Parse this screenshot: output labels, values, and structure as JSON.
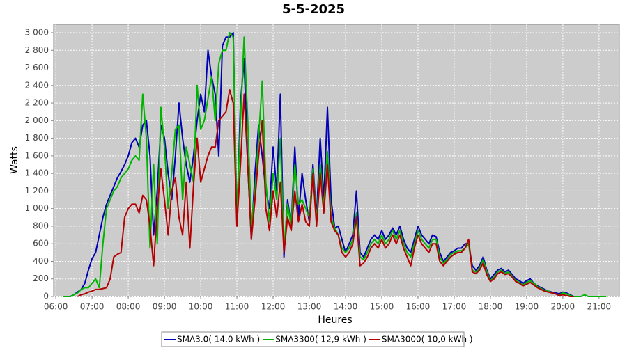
{
  "chart_data": {
    "type": "line",
    "title": "5-5-2025",
    "x_label": "Heures",
    "y_label": "Watts",
    "x": [
      6.2,
      6.3,
      6.4,
      6.5,
      6.6,
      6.7,
      6.8,
      6.9,
      7.0,
      7.1,
      7.2,
      7.3,
      7.4,
      7.5,
      7.6,
      7.7,
      7.8,
      7.9,
      8.0,
      8.1,
      8.2,
      8.3,
      8.4,
      8.5,
      8.6,
      8.7,
      8.8,
      8.9,
      9.0,
      9.1,
      9.2,
      9.3,
      9.4,
      9.5,
      9.6,
      9.7,
      9.8,
      9.9,
      10.0,
      10.1,
      10.2,
      10.3,
      10.4,
      10.5,
      10.6,
      10.7,
      10.8,
      10.9,
      11.0,
      11.1,
      11.2,
      11.3,
      11.4,
      11.5,
      11.6,
      11.7,
      11.8,
      11.9,
      12.0,
      12.1,
      12.2,
      12.3,
      12.4,
      12.5,
      12.6,
      12.7,
      12.8,
      12.9,
      13.0,
      13.1,
      13.2,
      13.3,
      13.4,
      13.5,
      13.6,
      13.7,
      13.8,
      13.9,
      14.0,
      14.1,
      14.2,
      14.3,
      14.4,
      14.5,
      14.6,
      14.7,
      14.8,
      14.9,
      15.0,
      15.1,
      15.2,
      15.3,
      15.4,
      15.5,
      15.6,
      15.7,
      15.8,
      15.9,
      16.0,
      16.1,
      16.2,
      16.3,
      16.4,
      16.5,
      16.6,
      16.7,
      16.8,
      16.9,
      17.0,
      17.1,
      17.2,
      17.3,
      17.4,
      17.5,
      17.6,
      17.7,
      17.8,
      17.9,
      18.0,
      18.1,
      18.2,
      18.3,
      18.4,
      18.5,
      18.6,
      18.7,
      18.8,
      18.9,
      19.0,
      19.1,
      19.2,
      19.3,
      19.4,
      19.5,
      19.6,
      19.7,
      19.8,
      19.9,
      20.0,
      20.1,
      20.2,
      20.3,
      20.4,
      20.5,
      20.6,
      20.7,
      20.8,
      20.9,
      21.0,
      21.1,
      21.2
    ],
    "series": [
      {
        "name": "SMA3.0( 14,0 kWh )",
        "color": "#0000b4",
        "values": [
          null,
          null,
          0,
          20,
          50,
          80,
          150,
          300,
          430,
          500,
          700,
          900,
          1050,
          1150,
          1250,
          1350,
          1420,
          1500,
          1600,
          1750,
          1800,
          1700,
          1950,
          2000,
          1600,
          700,
          1200,
          1950,
          1800,
          1400,
          1100,
          1600,
          2200,
          1800,
          1500,
          1300,
          1600,
          2000,
          2300,
          2100,
          2800,
          2500,
          2300,
          1600,
          2850,
          2950,
          2950,
          3000,
          850,
          2200,
          2700,
          1500,
          650,
          1400,
          1950,
          1600,
          1200,
          1000,
          1700,
          1200,
          2300,
          450,
          1100,
          800,
          1700,
          900,
          1400,
          1100,
          850,
          1500,
          900,
          1800,
          1100,
          2150,
          1100,
          780,
          800,
          650,
          500,
          600,
          700,
          1200,
          500,
          450,
          550,
          650,
          700,
          650,
          750,
          650,
          700,
          780,
          700,
          800,
          650,
          550,
          500,
          650,
          800,
          700,
          650,
          600,
          700,
          680,
          500,
          400,
          450,
          500,
          520,
          550,
          550,
          600,
          600,
          350,
          300,
          350,
          450,
          300,
          200,
          250,
          300,
          320,
          280,
          300,
          250,
          200,
          180,
          150,
          180,
          200,
          150,
          120,
          100,
          80,
          60,
          50,
          40,
          30,
          50,
          40,
          20,
          0,
          0,
          null,
          null,
          null,
          null,
          null,
          null,
          null,
          null
        ]
      },
      {
        "name": "SMA3300( 12,9 kWh )",
        "color": "#00b400",
        "values": [
          0,
          0,
          0,
          20,
          40,
          80,
          100,
          100,
          150,
          200,
          100,
          600,
          1000,
          1100,
          1200,
          1250,
          1350,
          1400,
          1450,
          1550,
          1600,
          1550,
          2300,
          1800,
          550,
          1500,
          600,
          2150,
          1700,
          1000,
          1400,
          1900,
          1950,
          1100,
          1700,
          1500,
          1300,
          2400,
          1900,
          2000,
          2250,
          2500,
          2000,
          2650,
          2800,
          2800,
          3000,
          2950,
          900,
          2000,
          2950,
          2000,
          800,
          1200,
          1800,
          2450,
          1300,
          850,
          1400,
          1100,
          1800,
          550,
          1050,
          800,
          1500,
          1050,
          1100,
          1000,
          900,
          1450,
          850,
          1500,
          1000,
          1650,
          900,
          780,
          700,
          550,
          500,
          550,
          650,
          950,
          450,
          420,
          500,
          600,
          650,
          600,
          700,
          600,
          650,
          750,
          650,
          750,
          600,
          500,
          450,
          600,
          750,
          650,
          600,
          550,
          650,
          650,
          450,
          380,
          420,
          480,
          500,
          520,
          520,
          550,
          600,
          300,
          280,
          320,
          420,
          280,
          180,
          220,
          280,
          300,
          260,
          280,
          230,
          180,
          160,
          130,
          160,
          180,
          150,
          110,
          90,
          70,
          60,
          40,
          30,
          20,
          40,
          30,
          10,
          0,
          0,
          0,
          20,
          0,
          0,
          0,
          0,
          0,
          0
        ]
      },
      {
        "name": "SMA3000( 10,0 kWh )",
        "color": "#b40000",
        "values": [
          null,
          null,
          null,
          null,
          0,
          20,
          30,
          50,
          60,
          80,
          80,
          90,
          100,
          200,
          450,
          480,
          500,
          900,
          1000,
          1050,
          1050,
          950,
          1150,
          1100,
          800,
          350,
          1000,
          1450,
          1100,
          700,
          1200,
          1350,
          900,
          700,
          1300,
          550,
          1250,
          1800,
          1300,
          1450,
          1600,
          1700,
          1700,
          2000,
          2050,
          2100,
          2350,
          2200,
          800,
          1500,
          2300,
          1500,
          650,
          1100,
          1600,
          2000,
          1000,
          750,
          1200,
          900,
          1300,
          500,
          900,
          750,
          1200,
          850,
          1050,
          850,
          800,
          1400,
          800,
          1400,
          950,
          1500,
          850,
          750,
          700,
          500,
          450,
          500,
          600,
          900,
          350,
          380,
          450,
          550,
          600,
          550,
          650,
          550,
          600,
          700,
          600,
          700,
          550,
          450,
          350,
          550,
          700,
          600,
          550,
          500,
          600,
          600,
          400,
          350,
          400,
          450,
          480,
          500,
          500,
          550,
          650,
          280,
          260,
          300,
          380,
          250,
          170,
          200,
          260,
          280,
          250,
          260,
          220,
          170,
          150,
          120,
          140,
          160,
          130,
          100,
          80,
          60,
          50,
          40,
          30,
          10,
          20,
          10,
          0,
          0,
          null,
          null,
          null,
          null,
          null,
          null,
          null,
          null,
          null
        ]
      }
    ],
    "xlim": [
      5.94,
      21.56
    ],
    "ylim": [
      0,
      3095
    ],
    "xticks": [
      {
        "value": 6,
        "label": "06:00"
      },
      {
        "value": 7,
        "label": "07:00"
      },
      {
        "value": 8,
        "label": "08:00"
      },
      {
        "value": 9,
        "label": "09:00"
      },
      {
        "value": 10,
        "label": "10:00"
      },
      {
        "value": 11,
        "label": "11:00"
      },
      {
        "value": 12,
        "label": "12:00"
      },
      {
        "value": 13,
        "label": "13:00"
      },
      {
        "value": 14,
        "label": "14:00"
      },
      {
        "value": 15,
        "label": "15:00"
      },
      {
        "value": 16,
        "label": "16:00"
      },
      {
        "value": 17,
        "label": "17:00"
      },
      {
        "value": 18,
        "label": "18:00"
      },
      {
        "value": 19,
        "label": "19:00"
      },
      {
        "value": 20,
        "label": "20:00"
      },
      {
        "value": 21,
        "label": "21:00"
      }
    ],
    "yticks": [
      0,
      200,
      400,
      600,
      800,
      {
        "value": 1000,
        "label": "1 000"
      },
      {
        "value": 1200,
        "label": "1 200"
      },
      {
        "value": 1400,
        "label": "1 400"
      },
      {
        "value": 1600,
        "label": "1 600"
      },
      {
        "value": 1800,
        "label": "1 800"
      },
      {
        "value": 2000,
        "label": "2 000"
      },
      {
        "value": 2200,
        "label": "2 200"
      },
      {
        "value": 2400,
        "label": "2 400"
      },
      {
        "value": 2600,
        "label": "2 600"
      },
      {
        "value": 2800,
        "label": "2 800"
      },
      {
        "value": 3000,
        "label": "3 000"
      }
    ],
    "grid": true,
    "legend": "bottom"
  }
}
